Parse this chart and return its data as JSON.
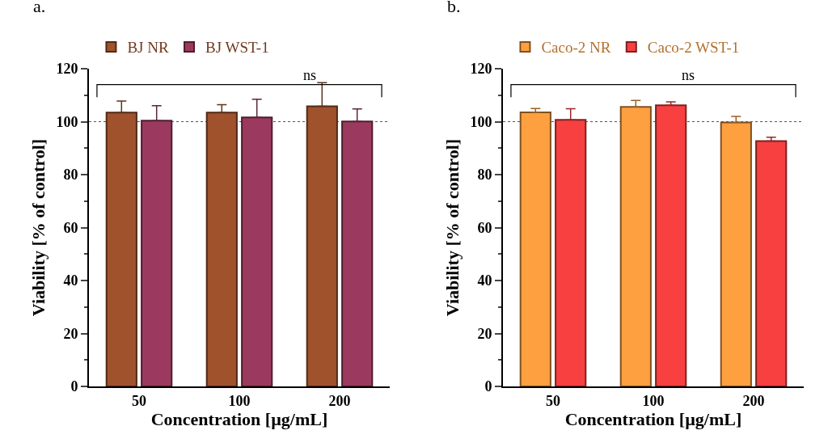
{
  "chart_data": [
    {
      "type": "bar",
      "title": "a.",
      "xlabel": "Concentration [µg/mL]",
      "ylabel": "Viability [% of control]",
      "categories": [
        "50",
        "100",
        "200"
      ],
      "series": [
        {
          "name": "BJ NR",
          "color": "#a0522d",
          "values": [
            103.4,
            103.4,
            105.8
          ],
          "errors": [
            [
              103.4,
              107.8
            ],
            [
              103.4,
              106.4
            ],
            [
              105.8,
              114.7
            ]
          ]
        },
        {
          "name": "BJ WST-1",
          "color": "#9b3a5e",
          "values": [
            100.4,
            101.6,
            100.1
          ],
          "errors": [
            [
              100.4,
              106
            ],
            [
              101.6,
              108.5
            ],
            [
              100.1,
              104.8
            ]
          ]
        }
      ],
      "ylim": [
        0,
        120
      ],
      "yticks": [
        0,
        20,
        40,
        60,
        80,
        100,
        120
      ],
      "grid": false,
      "legend": "top",
      "ref_lines": [
        {
          "axis": "y",
          "value": 100,
          "label": null,
          "color": "#555555",
          "line_style": "dotted"
        }
      ],
      "annotations": [
        "ns"
      ]
    },
    {
      "type": "bar",
      "title": "b.",
      "xlabel": "Concentration [µg/mL]",
      "ylabel": "Viability [% of control]",
      "categories": [
        "50",
        "100",
        "200"
      ],
      "series": [
        {
          "name": "Caco-2 NR",
          "color": "#ffa040",
          "values": [
            103.5,
            105.6,
            99.7
          ],
          "errors": [
            [
              103.5,
              105
            ],
            [
              105.6,
              108
            ],
            [
              99.7,
              102
            ]
          ]
        },
        {
          "name": "Caco-2 WST-1",
          "color": "#f84040",
          "values": [
            100.7,
            106.2,
            92.7
          ],
          "errors": [
            [
              100.7,
              104.9
            ],
            [
              106.2,
              107.5
            ],
            [
              92.7,
              94.1
            ]
          ]
        }
      ],
      "ylim": [
        0,
        120
      ],
      "yticks": [
        0,
        20,
        40,
        60,
        80,
        100,
        120
      ],
      "grid": false,
      "legend": "top",
      "ref_lines": [
        {
          "axis": "y",
          "value": 100,
          "label": null,
          "color": "#555555",
          "line_style": "dotted"
        }
      ],
      "annotations": [
        "ns"
      ]
    }
  ]
}
